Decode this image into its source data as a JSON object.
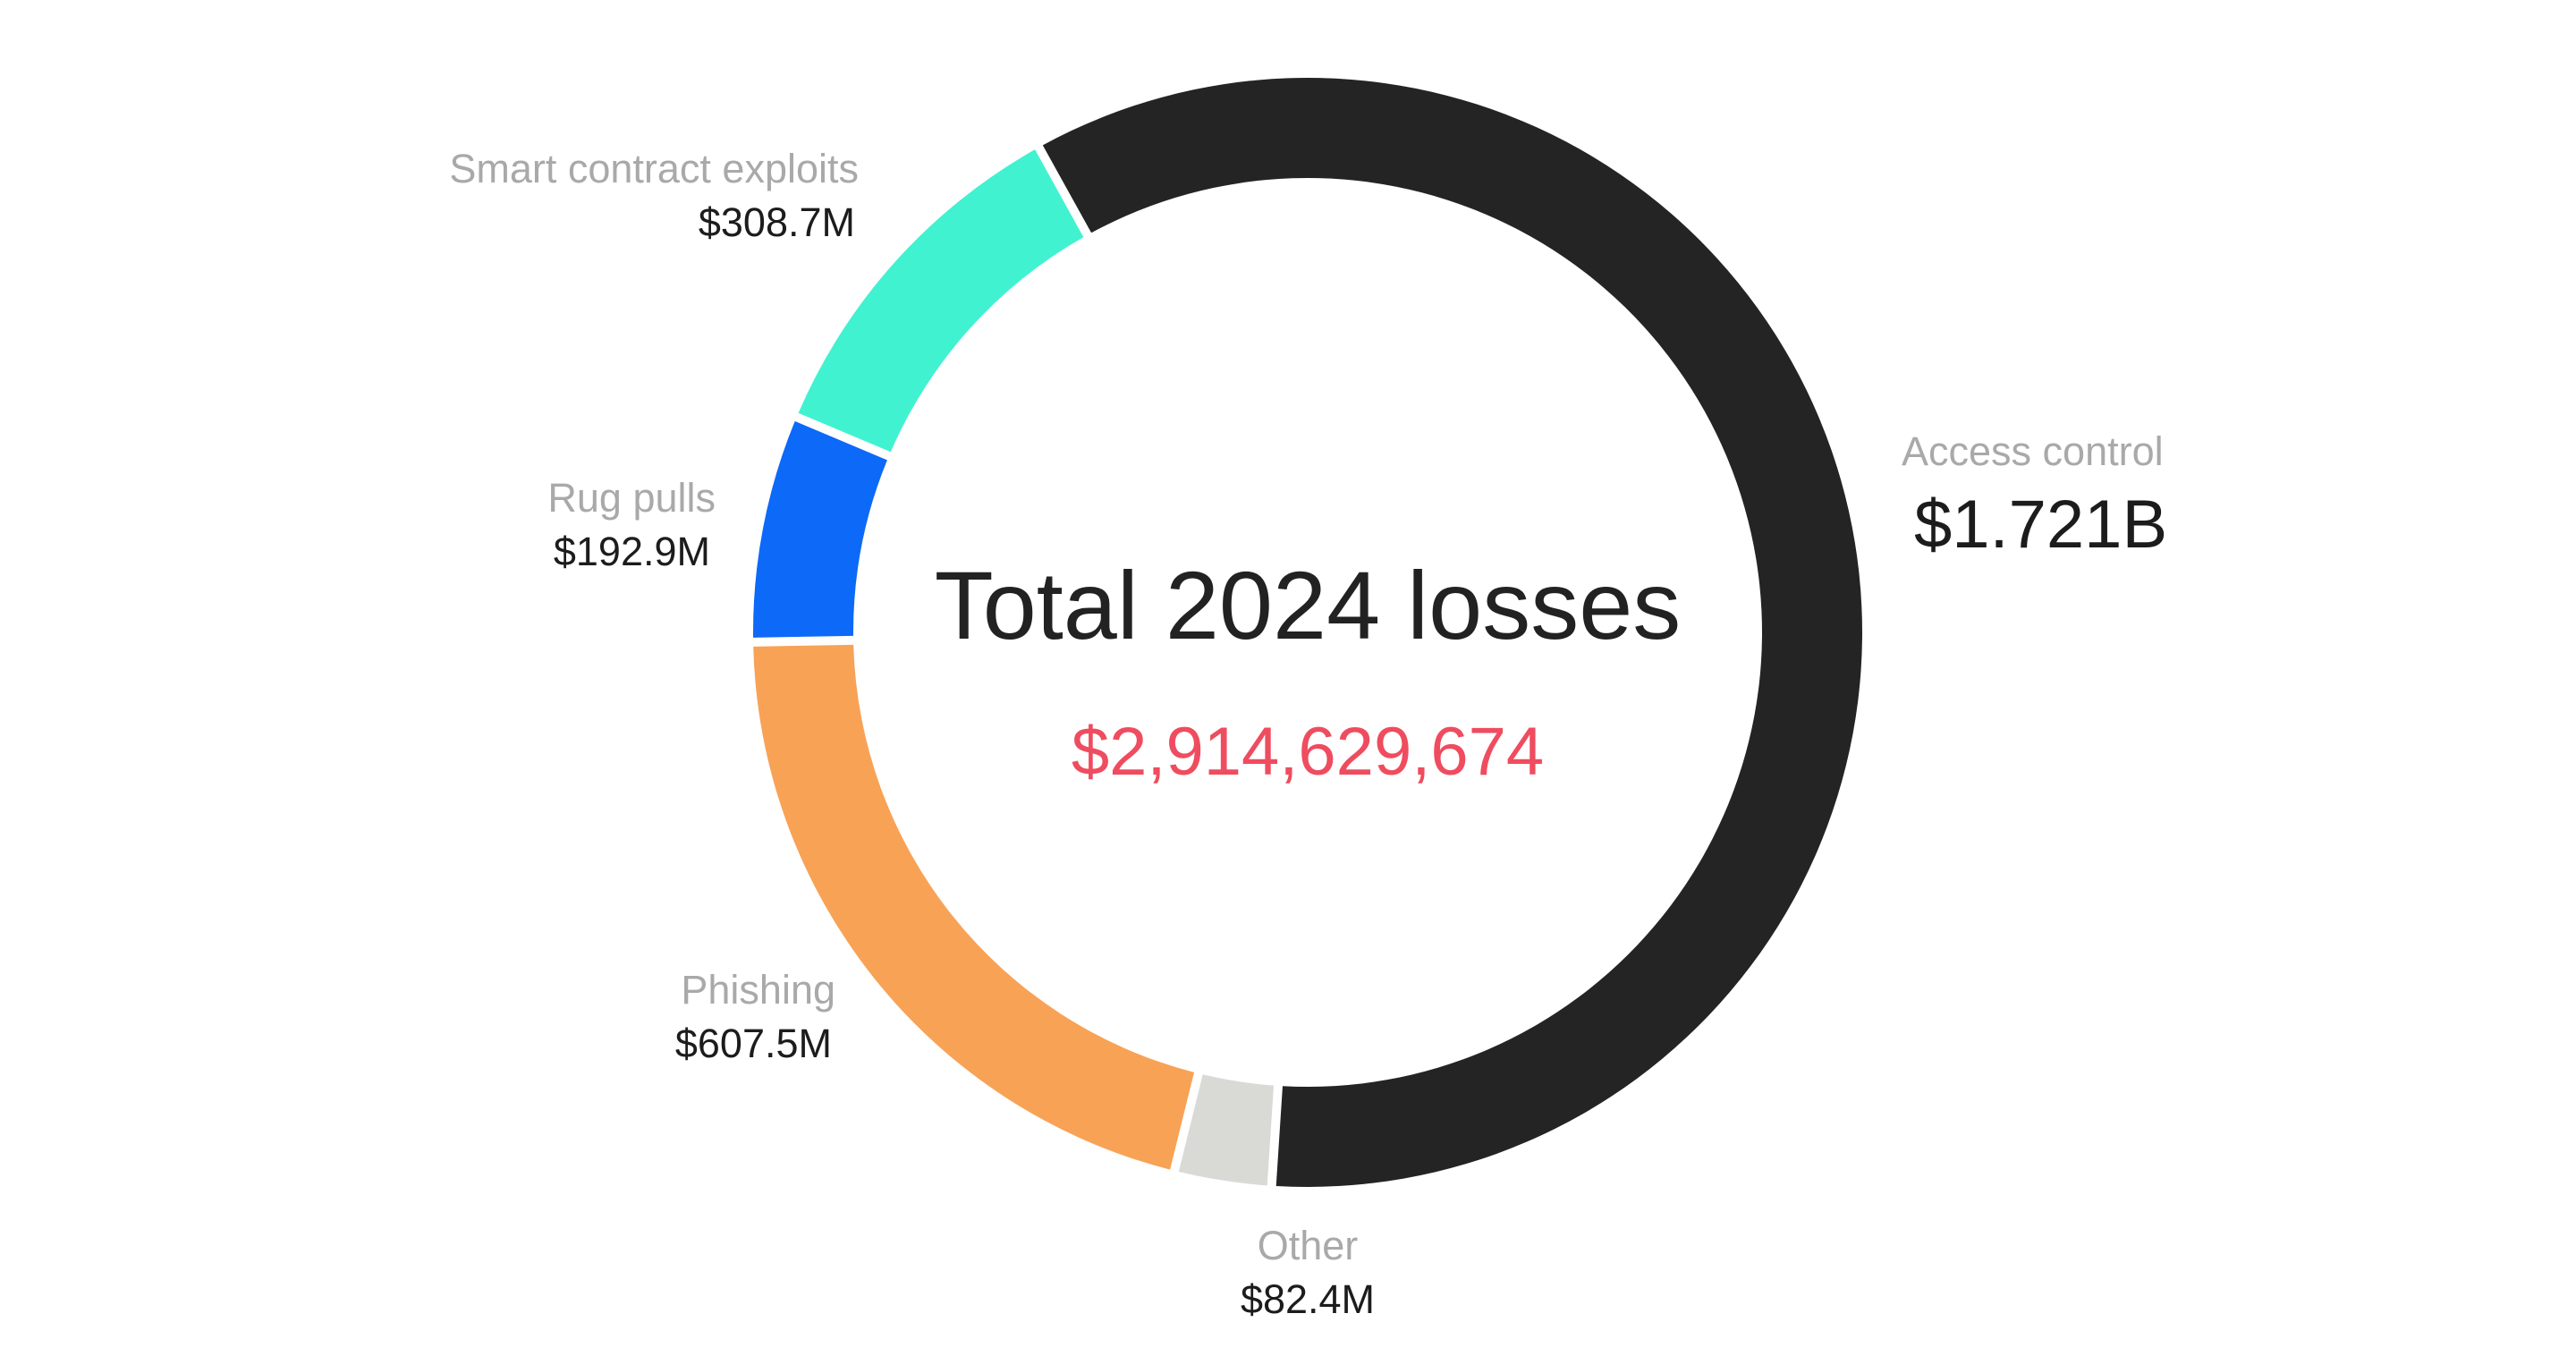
{
  "chart_data": {
    "type": "pie",
    "variant": "donut",
    "title": "Total 2024 losses",
    "total_label": "$2,914,629,674",
    "total_value": 2914629674,
    "unit": "USD",
    "slices": [
      {
        "label": "Access control",
        "value_label": "$1.721B",
        "value": 1721000000,
        "color": "#242424"
      },
      {
        "label": "Other",
        "value_label": "$82.4M",
        "value": 82400000,
        "color": "#d9d9d6"
      },
      {
        "label": "Phishing",
        "value_label": "$607.5M",
        "value": 607500000,
        "color": "#f8a256"
      },
      {
        "label": "Rug pulls",
        "value_label": "$192.9M",
        "value": 192900000,
        "color": "#0d69f7"
      },
      {
        "label": "Smart contract exploits",
        "value_label": "$308.7M",
        "value": 308700000,
        "color": "#41f2d1"
      }
    ],
    "direction": "clockwise",
    "start_angle_deg": -29,
    "colors": {
      "total": "#ef4c5f",
      "title": "#222222",
      "category_label": "#a9a9a9",
      "category_value": "#1c1c1c",
      "background": "#ffffff"
    }
  }
}
